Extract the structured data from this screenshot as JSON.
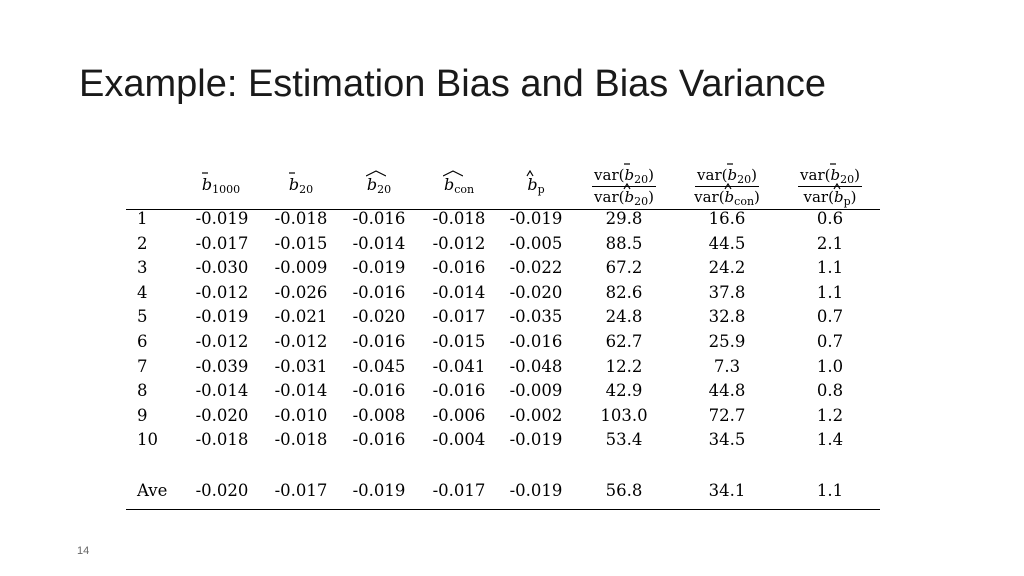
{
  "slide": {
    "title": "Example: Estimation Bias and Bias Variance",
    "number": "14"
  },
  "table": {
    "header": {
      "b1000": {
        "sub": "1000"
      },
      "b20": {
        "sub": "20"
      },
      "b20hat": {
        "sub": "20"
      },
      "bcon": {
        "sub": "con"
      },
      "bp": {
        "sub": "p"
      },
      "ratio1": {
        "num_sub": "20",
        "den_sub": "20"
      },
      "ratio2": {
        "num_sub": "20",
        "den_sub": "con"
      },
      "ratio3": {
        "num_sub": "20",
        "den_sub": "p"
      },
      "var_label": "var"
    },
    "rows": [
      {
        "label": "1",
        "cells": [
          "-0.019",
          "-0.018",
          "-0.016",
          "-0.018",
          "-0.019",
          "29.8",
          "16.6",
          "0.6"
        ]
      },
      {
        "label": "2",
        "cells": [
          "-0.017",
          "-0.015",
          "-0.014",
          "-0.012",
          "-0.005",
          "88.5",
          "44.5",
          "2.1"
        ]
      },
      {
        "label": "3",
        "cells": [
          "-0.030",
          "-0.009",
          "-0.019",
          "-0.016",
          "-0.022",
          "67.2",
          "24.2",
          "1.1"
        ]
      },
      {
        "label": "4",
        "cells": [
          "-0.012",
          "-0.026",
          "-0.016",
          "-0.014",
          "-0.020",
          "82.6",
          "37.8",
          "1.1"
        ]
      },
      {
        "label": "5",
        "cells": [
          "-0.019",
          "-0.021",
          "-0.020",
          "-0.017",
          "-0.035",
          "24.8",
          "32.8",
          "0.7"
        ]
      },
      {
        "label": "6",
        "cells": [
          "-0.012",
          "-0.012",
          "-0.016",
          "-0.015",
          "-0.016",
          "62.7",
          "25.9",
          "0.7"
        ]
      },
      {
        "label": "7",
        "cells": [
          "-0.039",
          "-0.031",
          "-0.045",
          "-0.041",
          "-0.048",
          "12.2",
          "7.3",
          "1.0"
        ]
      },
      {
        "label": "8",
        "cells": [
          "-0.014",
          "-0.014",
          "-0.016",
          "-0.016",
          "-0.009",
          "42.9",
          "44.8",
          "0.8"
        ]
      },
      {
        "label": "9",
        "cells": [
          "-0.020",
          "-0.010",
          "-0.008",
          "-0.006",
          "-0.002",
          "103.0",
          "72.7",
          "1.2"
        ]
      },
      {
        "label": "10",
        "cells": [
          "-0.018",
          "-0.018",
          "-0.016",
          "-0.004",
          "-0.019",
          "53.4",
          "34.5",
          "1.4"
        ]
      }
    ],
    "average": {
      "label": "Ave",
      "cells": [
        "-0.020",
        "-0.017",
        "-0.019",
        "-0.017",
        "-0.019",
        "56.8",
        "34.1",
        "1.1"
      ]
    }
  }
}
